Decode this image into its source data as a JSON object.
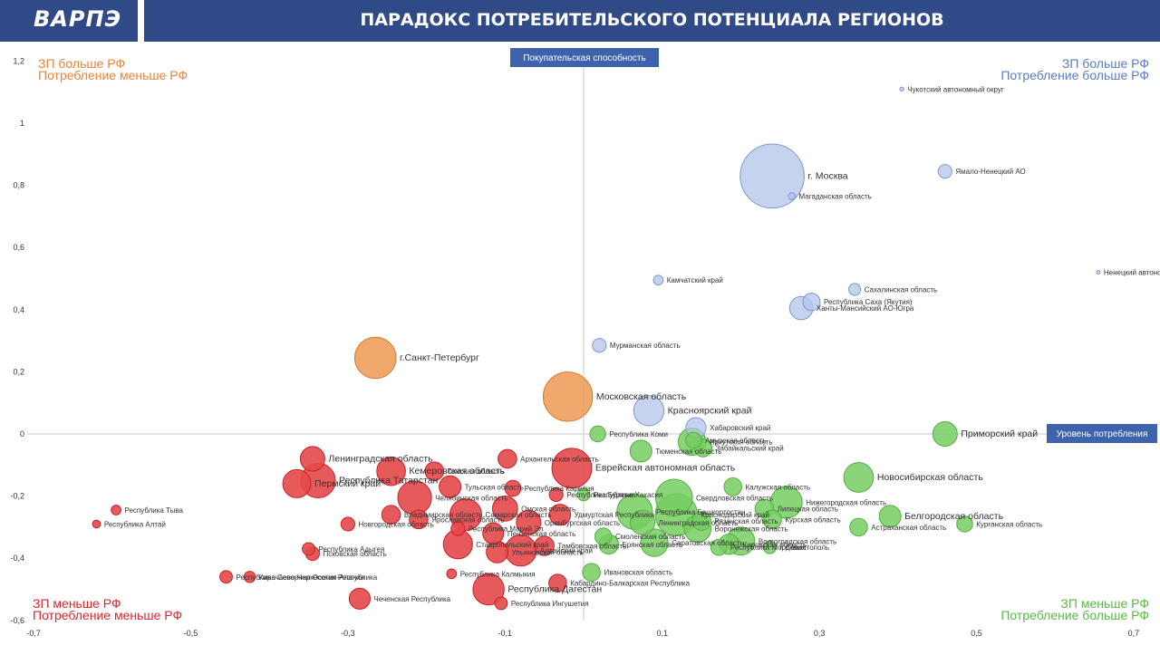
{
  "header": {
    "logo": "ВАРПЭ",
    "title": "ПАРАДОКС ПОТРЕБИТЕЛЬСКОГО ПОТЕНЦИАЛА РЕГИОНОВ"
  },
  "quadrants": {
    "top_left": [
      "ЗП больше РФ",
      "Потребление меньше РФ"
    ],
    "top_right": [
      "ЗП больше РФ",
      "Потребление больше РФ"
    ],
    "bottom_left": [
      "ЗП меньше РФ",
      "Потребление меньше РФ"
    ],
    "bottom_right": [
      "ЗП меньше РФ",
      "Потребление больше РФ"
    ]
  },
  "colors": {
    "header": "#2f4a86",
    "top_left": "#e8843a",
    "top_right": "#5b7cc4",
    "bottom_left": "#d9262b",
    "bottom_right": "#5ab945"
  },
  "chart_data": {
    "type": "scatter",
    "title": "ПАРАДОКС ПОТРЕБИТЕЛЬСКОГО ПОТЕНЦИАЛА РЕГИОНОВ",
    "xlabel": "Уровень потребления",
    "ylabel": "Покупательская способность",
    "xlim": [
      -0.7,
      0.7
    ],
    "ylim": [
      -0.6,
      1.2
    ],
    "xticks": [
      -0.7,
      -0.5,
      -0.3,
      -0.1,
      0.1,
      0.3,
      0.5,
      0.7
    ],
    "xticklabels": [
      "-0,7",
      "-0,5",
      "-0,3",
      "-0,1",
      "0,1",
      "0,3",
      "0,5",
      "0,7"
    ],
    "yticks": [
      1.2,
      1.0,
      0.8,
      0.6,
      0.4,
      0.2,
      0,
      -0.2,
      -0.4,
      -0.6
    ],
    "yticklabels": [
      "1,2",
      "1",
      "0,8",
      "0,6",
      "0,4",
      "0,2",
      "0",
      "-0,2",
      "-0,4",
      "-0,6"
    ],
    "grid": false,
    "points": [
      {
        "label": "г. Москва",
        "x": 0.24,
        "y": 0.83,
        "size": 13,
        "color": "blue",
        "big": true
      },
      {
        "label": "Магаданская область",
        "x": 0.265,
        "y": 0.765,
        "size": 0.15,
        "color": "blue"
      },
      {
        "label": "Чукотский автономный округ",
        "x": 0.405,
        "y": 1.11,
        "size": 0.05,
        "color": "blue"
      },
      {
        "label": "Ямало-Ненецкий АО",
        "x": 0.46,
        "y": 0.845,
        "size": 0.6,
        "color": "blue"
      },
      {
        "label": "Ненецкий автономный округ",
        "x": 0.655,
        "y": 0.52,
        "size": 0.04,
        "color": "blue"
      },
      {
        "label": "Камчатский край",
        "x": 0.095,
        "y": 0.495,
        "size": 0.3,
        "color": "blue"
      },
      {
        "label": "Сахалинская область",
        "x": 0.345,
        "y": 0.465,
        "size": 0.45,
        "color": "blue"
      },
      {
        "label": "Республика Саха (Якутия)",
        "x": 0.29,
        "y": 0.425,
        "size": 0.95,
        "color": "blue"
      },
      {
        "label": "Ханты-Мансийский АО-Югра",
        "x": 0.277,
        "y": 0.405,
        "size": 1.7,
        "color": "blue"
      },
      {
        "label": "Мурманская область",
        "x": 0.02,
        "y": 0.285,
        "size": 0.6,
        "color": "blue"
      },
      {
        "label": "Красноярский край",
        "x": 0.083,
        "y": 0.075,
        "size": 2.9,
        "color": "blue",
        "big": true
      },
      {
        "label": "Хабаровский край",
        "x": 0.143,
        "y": 0.02,
        "size": 1.3,
        "color": "blue"
      },
      {
        "label": "г.Санкт-Петербург",
        "x": -0.265,
        "y": 0.245,
        "size": 5.4,
        "color": "orange",
        "big": true
      },
      {
        "label": "Московская область",
        "x": -0.02,
        "y": 0.12,
        "size": 7.7,
        "color": "orange",
        "big": true
      },
      {
        "label": "Республика Коми",
        "x": 0.018,
        "y": 0.0,
        "size": 0.8,
        "color": "green"
      },
      {
        "label": "Амурская область",
        "x": 0.14,
        "y": -0.02,
        "size": 0.8,
        "color": "green"
      },
      {
        "label": "Иркутская область",
        "x": 0.138,
        "y": -0.025,
        "size": 2.4,
        "color": "green"
      },
      {
        "label": "Забайкальский край",
        "x": 0.152,
        "y": -0.045,
        "size": 1.0,
        "color": "green"
      },
      {
        "label": "Тюменская область",
        "x": 0.073,
        "y": -0.055,
        "size": 1.5,
        "color": "green"
      },
      {
        "label": "Приморский край",
        "x": 0.46,
        "y": 0.0,
        "size": 1.9,
        "color": "green",
        "big": true
      },
      {
        "label": "Новосибирская область",
        "x": 0.35,
        "y": -0.14,
        "size": 2.8,
        "color": "green",
        "big": true
      },
      {
        "label": "Калужская область",
        "x": 0.19,
        "y": -0.17,
        "size": 1.0,
        "color": "green"
      },
      {
        "label": "Свердловская область",
        "x": 0.115,
        "y": -0.205,
        "size": 4.3,
        "color": "green"
      },
      {
        "label": "Республика Хакасия",
        "x": 0.0,
        "y": -0.195,
        "size": 0.5,
        "color": "green"
      },
      {
        "label": "Белгородская область",
        "x": 0.39,
        "y": -0.265,
        "size": 1.5,
        "color": "green",
        "big": true
      },
      {
        "label": "Курганская область",
        "x": 0.485,
        "y": -0.29,
        "size": 0.8,
        "color": "green"
      },
      {
        "label": "Нижегородская область",
        "x": 0.258,
        "y": -0.22,
        "size": 3.2,
        "color": "green"
      },
      {
        "label": "Республика Башкортостан",
        "x": 0.065,
        "y": -0.25,
        "size": 4.0,
        "color": "green"
      },
      {
        "label": "Краснодарский край",
        "x": 0.118,
        "y": -0.26,
        "size": 5.6,
        "color": "green"
      },
      {
        "label": "Липецкая область",
        "x": 0.23,
        "y": -0.24,
        "size": 1.1,
        "color": "green"
      },
      {
        "label": "Курская область",
        "x": 0.24,
        "y": -0.275,
        "size": 1.1,
        "color": "green"
      },
      {
        "label": "Рязанская область",
        "x": 0.15,
        "y": -0.28,
        "size": 1.1,
        "color": "green"
      },
      {
        "label": "Воронежская область",
        "x": 0.145,
        "y": -0.305,
        "size": 2.3,
        "color": "green"
      },
      {
        "label": "Астраханская область",
        "x": 0.35,
        "y": -0.3,
        "size": 1.0,
        "color": "green"
      },
      {
        "label": "Волгоградская область",
        "x": 0.2,
        "y": -0.345,
        "size": 2.5,
        "color": "green"
      },
      {
        "label": "Ленинградская область",
        "x": 0.075,
        "y": -0.285,
        "size": 1.9,
        "color": "green"
      },
      {
        "label": "Смоленская область",
        "x": 0.025,
        "y": -0.33,
        "size": 0.9,
        "color": "green"
      },
      {
        "label": "Брянская область",
        "x": 0.032,
        "y": -0.355,
        "size": 1.2,
        "color": "green"
      },
      {
        "label": "Саратовская область",
        "x": 0.09,
        "y": -0.35,
        "size": 2.4,
        "color": "green"
      },
      {
        "label": "Кировская область",
        "x": 0.185,
        "y": -0.355,
        "size": 1.3,
        "color": "green"
      },
      {
        "label": "Республика Мордовия",
        "x": 0.172,
        "y": -0.365,
        "size": 0.8,
        "color": "green"
      },
      {
        "label": "г. Севастополь",
        "x": 0.237,
        "y": -0.365,
        "size": 0.5,
        "color": "green"
      },
      {
        "label": "Ивановская область",
        "x": 0.01,
        "y": -0.445,
        "size": 1.0,
        "color": "green"
      },
      {
        "label": "Ленинградская область",
        "x": -0.345,
        "y": -0.08,
        "size": 1.9,
        "color": "red",
        "big": true
      },
      {
        "label": "Пермский край",
        "x": -0.365,
        "y": -0.16,
        "size": 2.5,
        "color": "red",
        "big": true
      },
      {
        "label": "Республика Татарстан",
        "x": -0.338,
        "y": -0.15,
        "size": 3.8,
        "color": "red",
        "big": true
      },
      {
        "label": "Кемеровская область",
        "x": -0.245,
        "y": -0.12,
        "size": 2.6,
        "color": "red",
        "big": true
      },
      {
        "label": "Архангельская область",
        "x": -0.097,
        "y": -0.08,
        "size": 1.1,
        "color": "red"
      },
      {
        "label": "Еврейская автономная область",
        "x": -0.015,
        "y": -0.11,
        "size": 5.0,
        "color": "red",
        "big": true
      },
      {
        "label": "Томская область",
        "x": -0.19,
        "y": -0.12,
        "size": 1.1,
        "color": "red"
      },
      {
        "label": "Тульская область",
        "x": -0.17,
        "y": -0.17,
        "size": 1.5,
        "color": "red"
      },
      {
        "label": "Республика Карелия",
        "x": -0.09,
        "y": -0.175,
        "size": 0.8,
        "color": "red"
      },
      {
        "label": "Республика Бурятия",
        "x": -0.035,
        "y": -0.195,
        "size": 0.6,
        "color": "red"
      },
      {
        "label": "Челябинская область",
        "x": -0.215,
        "y": -0.205,
        "size": 3.6,
        "color": "red"
      },
      {
        "label": "Самарская область",
        "x": -0.15,
        "y": -0.26,
        "size": 3.2,
        "color": "red"
      },
      {
        "label": "Ярославская область",
        "x": -0.21,
        "y": -0.275,
        "size": 1.1,
        "color": "red"
      },
      {
        "label": "Владимирская область",
        "x": -0.245,
        "y": -0.26,
        "size": 1.1,
        "color": "red"
      },
      {
        "label": "Новгородская область",
        "x": -0.3,
        "y": -0.29,
        "size": 0.6,
        "color": "red"
      },
      {
        "label": "Республика Тыва",
        "x": -0.595,
        "y": -0.245,
        "size": 0.3,
        "color": "red"
      },
      {
        "label": "Республика Алтай",
        "x": -0.62,
        "y": -0.29,
        "size": 0.2,
        "color": "red"
      },
      {
        "label": "Республика Адыгея",
        "x": -0.35,
        "y": -0.37,
        "size": 0.5,
        "color": "red"
      },
      {
        "label": "Псковская область",
        "x": -0.345,
        "y": -0.385,
        "size": 0.6,
        "color": "red"
      },
      {
        "label": "Омская область",
        "x": -0.1,
        "y": -0.24,
        "size": 2.0,
        "color": "red"
      },
      {
        "label": "Оренбургская область",
        "x": -0.07,
        "y": -0.285,
        "size": 1.9,
        "color": "red"
      },
      {
        "label": "Удмуртская Республика",
        "x": -0.03,
        "y": -0.26,
        "size": 1.4,
        "color": "red"
      },
      {
        "label": "Республика Марий Эл",
        "x": -0.16,
        "y": -0.305,
        "size": 0.6,
        "color": "red"
      },
      {
        "label": "Ставропольский край",
        "x": -0.16,
        "y": -0.355,
        "size": 2.7,
        "color": "red"
      },
      {
        "label": "Пензенская область",
        "x": -0.115,
        "y": -0.32,
        "size": 1.4,
        "color": "red"
      },
      {
        "label": "Алтайский край",
        "x": -0.08,
        "y": -0.375,
        "size": 3.1,
        "color": "red"
      },
      {
        "label": "Ульяновская область",
        "x": -0.11,
        "y": -0.38,
        "size": 1.5,
        "color": "red"
      },
      {
        "label": "Тамбовская область",
        "x": -0.05,
        "y": -0.36,
        "size": 1.2,
        "color": "red"
      },
      {
        "label": "Республика Калмыкия",
        "x": -0.168,
        "y": -0.45,
        "size": 0.3,
        "color": "red"
      },
      {
        "label": "Республика Северная Осетия-Алания",
        "x": -0.455,
        "y": -0.46,
        "size": 0.5,
        "color": "red"
      },
      {
        "label": "Карачаево-Черкесская Республика",
        "x": -0.425,
        "y": -0.46,
        "size": 0.4,
        "color": "red"
      },
      {
        "label": "Кабардино-Балкарская Республика",
        "x": -0.033,
        "y": -0.48,
        "size": 1.0,
        "color": "red"
      },
      {
        "label": "Республика Дагестан",
        "x": -0.121,
        "y": -0.5,
        "size": 3.1,
        "color": "red",
        "big": true
      },
      {
        "label": "Чеченская Республика",
        "x": -0.285,
        "y": -0.53,
        "size": 1.4,
        "color": "red"
      },
      {
        "label": "Республика Ингушетия",
        "x": -0.105,
        "y": -0.545,
        "size": 0.5,
        "color": "red"
      }
    ]
  }
}
